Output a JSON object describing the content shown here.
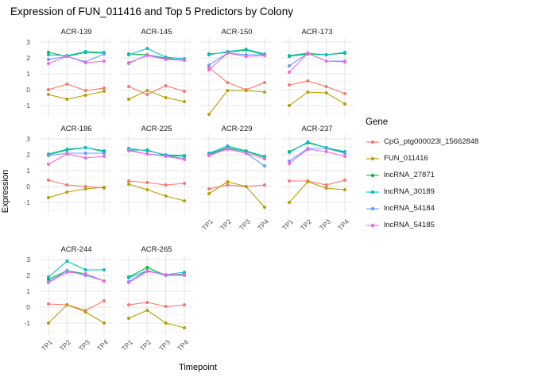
{
  "chart_data": {
    "type": "line",
    "title": "Expression of FUN_011416 and Top 5 Predictors by Colony",
    "xlabel": "Timepoint",
    "ylabel": "Expression",
    "legend_title": "Gene",
    "legend_position": "right",
    "grid": true,
    "x_categories": [
      "TP1",
      "TP2",
      "TP3",
      "TP4"
    ],
    "y_ticks": [
      -1,
      0,
      1,
      2,
      3
    ],
    "ylim": [
      -1.75,
      3.25
    ],
    "series_meta": [
      {
        "name": "CpG_ptg000023l_15662848",
        "color": "#F8766D"
      },
      {
        "name": "FUN_011416",
        "color": "#B79F00"
      },
      {
        "name": "lncRNA_27871",
        "color": "#00BA38"
      },
      {
        "name": "lncRNA_30189",
        "color": "#00BFC4"
      },
      {
        "name": "lncRNA_54184",
        "color": "#619CFF"
      },
      {
        "name": "lncRNA_54185",
        "color": "#F564E3"
      }
    ],
    "facets": [
      {
        "colony": "ACR-139",
        "values": [
          [
            0.0,
            0.35,
            -0.05,
            0.1
          ],
          [
            -0.3,
            -0.6,
            -0.35,
            -0.1
          ],
          [
            2.35,
            2.1,
            2.35,
            2.3
          ],
          [
            2.2,
            2.15,
            2.4,
            2.35
          ],
          [
            1.9,
            2.1,
            1.75,
            2.25
          ],
          [
            1.65,
            2.1,
            1.7,
            1.8
          ]
        ]
      },
      {
        "colony": "ACR-145",
        "values": [
          [
            0.2,
            -0.3,
            0.25,
            -0.1
          ],
          [
            -0.6,
            -0.05,
            -0.5,
            -0.75
          ],
          [
            2.25,
            2.2,
            2.0,
            1.85
          ],
          [
            2.2,
            2.6,
            2.05,
            1.95
          ],
          [
            1.65,
            2.2,
            1.95,
            1.9
          ],
          [
            1.7,
            2.15,
            1.9,
            1.85
          ]
        ]
      },
      {
        "colony": "ACR-150",
        "values": [
          [
            1.4,
            0.45,
            0.0,
            0.45
          ],
          [
            -1.55,
            -0.05,
            -0.05,
            -0.15
          ],
          [
            2.25,
            2.35,
            2.5,
            2.2
          ],
          [
            2.2,
            2.4,
            2.55,
            2.25
          ],
          [
            1.55,
            2.3,
            2.2,
            2.2
          ],
          [
            1.25,
            2.3,
            2.1,
            2.15
          ]
        ]
      },
      {
        "colony": "ACR-173",
        "values": [
          [
            0.3,
            0.55,
            0.2,
            -0.25
          ],
          [
            -1.0,
            -0.15,
            -0.2,
            -0.9
          ],
          [
            2.1,
            2.25,
            2.2,
            2.3
          ],
          [
            2.15,
            2.3,
            2.2,
            2.35
          ],
          [
            1.5,
            2.3,
            1.8,
            1.8
          ],
          [
            1.1,
            2.3,
            1.8,
            1.75
          ]
        ]
      },
      {
        "colony": "ACR-186",
        "values": [
          [
            0.4,
            0.1,
            0.0,
            -0.1
          ],
          [
            -0.7,
            -0.35,
            -0.15,
            -0.05
          ],
          [
            2.0,
            2.3,
            2.45,
            2.2
          ],
          [
            2.05,
            2.35,
            2.45,
            2.25
          ],
          [
            1.95,
            2.1,
            2.1,
            2.1
          ],
          [
            1.4,
            2.05,
            1.8,
            1.9
          ]
        ]
      },
      {
        "colony": "ACR-225",
        "values": [
          [
            0.35,
            0.25,
            0.1,
            0.2
          ],
          [
            0.15,
            -0.2,
            -0.6,
            -0.9
          ],
          [
            2.3,
            2.3,
            1.95,
            1.9
          ],
          [
            2.4,
            2.25,
            2.0,
            1.95
          ],
          [
            2.3,
            2.05,
            1.95,
            1.75
          ],
          [
            2.25,
            2.05,
            1.9,
            1.7
          ]
        ]
      },
      {
        "colony": "ACR-229",
        "values": [
          [
            -0.15,
            0.1,
            0.0,
            0.1
          ],
          [
            -0.45,
            0.3,
            0.0,
            -1.3
          ],
          [
            2.05,
            2.45,
            2.2,
            1.85
          ],
          [
            2.1,
            2.55,
            2.25,
            1.9
          ],
          [
            2.0,
            2.4,
            2.1,
            1.3
          ],
          [
            1.95,
            2.35,
            2.1,
            1.75
          ]
        ]
      },
      {
        "colony": "ACR-237",
        "values": [
          [
            0.35,
            0.35,
            0.1,
            0.4
          ],
          [
            -1.0,
            0.3,
            -0.1,
            -0.2
          ],
          [
            2.2,
            2.75,
            2.45,
            2.15
          ],
          [
            2.15,
            2.8,
            2.45,
            2.2
          ],
          [
            1.6,
            2.4,
            2.4,
            2.1
          ],
          [
            1.45,
            2.35,
            2.2,
            1.9
          ]
        ]
      },
      {
        "colony": "ACR-244",
        "values": [
          [
            0.2,
            0.15,
            -0.2,
            0.4
          ],
          [
            -1.0,
            0.15,
            -0.3,
            -1.0
          ],
          [
            1.75,
            2.3,
            2.1,
            1.65
          ],
          [
            1.9,
            2.9,
            2.35,
            2.35
          ],
          [
            1.6,
            2.3,
            2.0,
            1.65
          ],
          [
            1.55,
            2.2,
            2.1,
            1.65
          ]
        ]
      },
      {
        "colony": "ACR-265",
        "values": [
          [
            0.15,
            0.3,
            0.05,
            0.15
          ],
          [
            -0.7,
            -0.2,
            -1.0,
            -1.3
          ],
          [
            1.9,
            2.5,
            2.0,
            2.1
          ],
          [
            1.85,
            2.3,
            2.05,
            2.2
          ],
          [
            1.6,
            2.3,
            2.0,
            2.0
          ],
          [
            1.55,
            2.25,
            2.05,
            2.05
          ]
        ]
      }
    ]
  }
}
